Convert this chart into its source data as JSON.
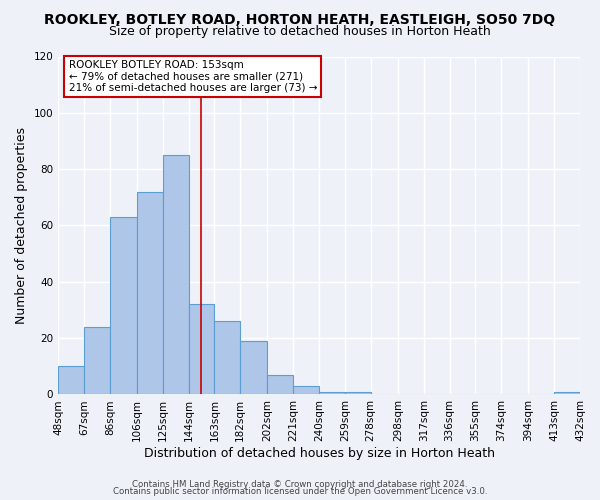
{
  "title": "ROOKLEY, BOTLEY ROAD, HORTON HEATH, EASTLEIGH, SO50 7DQ",
  "subtitle": "Size of property relative to detached houses in Horton Heath",
  "xlabel": "Distribution of detached houses by size in Horton Heath",
  "ylabel": "Number of detached properties",
  "bin_labels": [
    "48sqm",
    "67sqm",
    "86sqm",
    "106sqm",
    "125sqm",
    "144sqm",
    "163sqm",
    "182sqm",
    "202sqm",
    "221sqm",
    "240sqm",
    "259sqm",
    "278sqm",
    "298sqm",
    "317sqm",
    "336sqm",
    "355sqm",
    "374sqm",
    "394sqm",
    "413sqm",
    "432sqm"
  ],
  "bin_edges": [
    48,
    67,
    86,
    106,
    125,
    144,
    163,
    182,
    202,
    221,
    240,
    259,
    278,
    298,
    317,
    336,
    355,
    374,
    394,
    413,
    432
  ],
  "bar_heights": [
    10,
    24,
    63,
    72,
    85,
    32,
    26,
    19,
    7,
    3,
    1,
    1,
    0,
    0,
    0,
    0,
    0,
    0,
    0,
    1
  ],
  "bar_color": "#aec6e8",
  "bar_edge_color": "#5a9fd4",
  "vline_x": 153,
  "vline_color": "#cc0000",
  "annotation_line1": "ROOKLEY BOTLEY ROAD: 153sqm",
  "annotation_line2": "← 79% of detached houses are smaller (271)",
  "annotation_line3": "21% of semi-detached houses are larger (73) →",
  "annotation_box_color": "#ffffff",
  "annotation_box_edge_color": "#cc0000",
  "ylim": [
    0,
    120
  ],
  "yticks": [
    0,
    20,
    40,
    60,
    80,
    100,
    120
  ],
  "bg_color": "#eef2f8",
  "plot_bg_color": "#eef2f8",
  "grid_color": "#ffffff",
  "footer_line1": "Contains HM Land Registry data © Crown copyright and database right 2024.",
  "footer_line2": "Contains public sector information licensed under the Open Government Licence v3.0.",
  "title_fontsize": 10,
  "subtitle_fontsize": 9,
  "xlabel_fontsize": 9,
  "ylabel_fontsize": 9
}
